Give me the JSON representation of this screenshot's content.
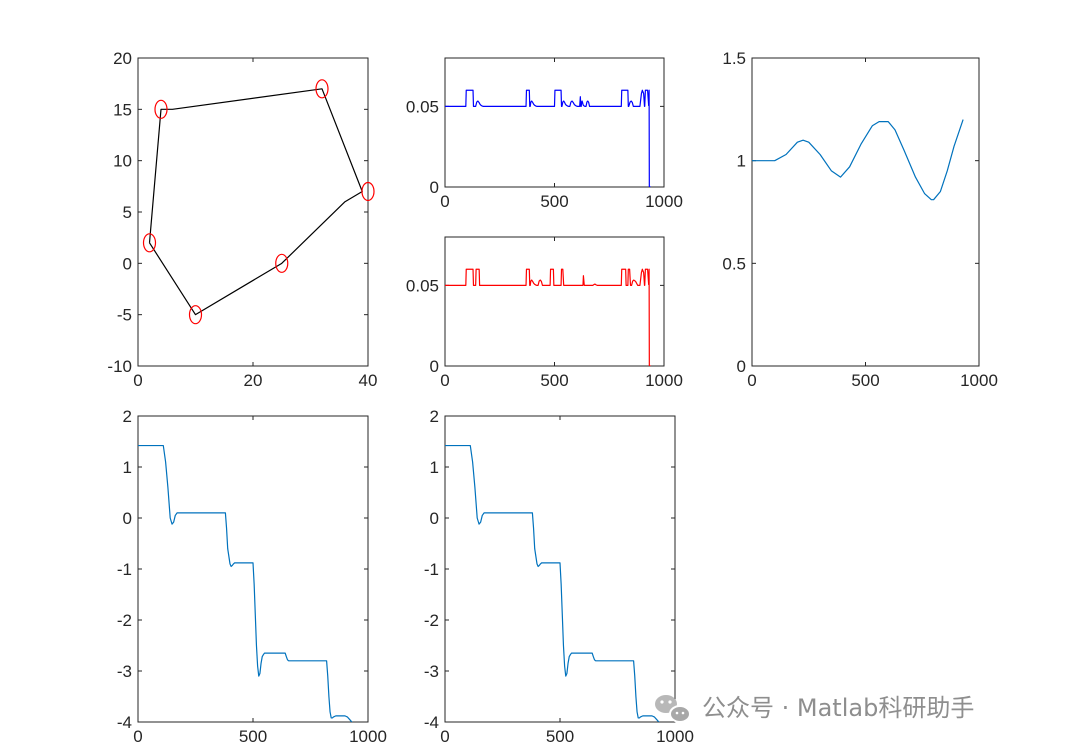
{
  "watermark": {
    "text": "公众号 · Matlab科研助手",
    "icon": "wechat-icon"
  },
  "chart_data": [
    {
      "type": "line",
      "panel": "top-left",
      "xlim": [
        0,
        40
      ],
      "ylim": [
        -10,
        20
      ],
      "xticks": [
        "0",
        "20",
        "40"
      ],
      "yticks": [
        "-10",
        "-5",
        "0",
        "5",
        "10",
        "15",
        "20"
      ],
      "series": [
        {
          "color": "#000000",
          "x": [
            2,
            4,
            6,
            32,
            39,
            36,
            25,
            10,
            2
          ],
          "y": [
            2,
            15,
            15,
            17,
            7,
            6,
            0,
            -5,
            2
          ]
        },
        {
          "type": "scatter",
          "marker": "circle",
          "color": "#ff0000",
          "x": [
            2,
            4,
            10,
            25,
            32,
            40
          ],
          "y": [
            2,
            15,
            -5,
            0,
            17,
            7
          ]
        }
      ]
    },
    {
      "type": "line",
      "panel": "top-middle-upper",
      "xlim": [
        0,
        1000
      ],
      "ylim": [
        0,
        0.08
      ],
      "xticks": [
        "0",
        "500",
        "1000"
      ],
      "yticks": [
        "0",
        "0.05"
      ],
      "series": [
        {
          "color": "#0000ff",
          "x": [
            0,
            95,
            97,
            99,
            103,
            110,
            118,
            123,
            128,
            130,
            132,
            140,
            145,
            150,
            155,
            160,
            165,
            170,
            175,
            180,
            185,
            370,
            372,
            374,
            385,
            387,
            389,
            392,
            396,
            400,
            405,
            410,
            415,
            420,
            425,
            500,
            502,
            504,
            530,
            532,
            534,
            538,
            542,
            546,
            550,
            555,
            560,
            565,
            570,
            575,
            580,
            585,
            590,
            595,
            600,
            605,
            610,
            615,
            618,
            620,
            622,
            624,
            626,
            628,
            630,
            632,
            636,
            640,
            644,
            648,
            652,
            656,
            660,
            805,
            807,
            809,
            835,
            837,
            839,
            845,
            850,
            855,
            860,
            880,
            890,
            897,
            901,
            907,
            911,
            912,
            915,
            918,
            925,
            930,
            932,
            933,
            940
          ],
          "y": [
            0.05,
            0.05,
            0.06,
            0.06,
            0.06,
            0.06,
            0.06,
            0.06,
            0.06,
            0.05,
            0.05,
            0.05,
            0.0527,
            0.0533,
            0.0525,
            0.0513,
            0.0506,
            0.0502,
            0.05,
            0.05,
            0.05,
            0.05,
            0.06,
            0.06,
            0.06,
            0.05,
            0.05,
            0.0527,
            0.0533,
            0.0525,
            0.0513,
            0.0506,
            0.0502,
            0.05,
            0.05,
            0.05,
            0.06,
            0.06,
            0.06,
            0.05,
            0.05,
            0.0527,
            0.0533,
            0.0525,
            0.0513,
            0.0506,
            0.0502,
            0.05,
            0.05,
            0.0527,
            0.0533,
            0.0525,
            0.0513,
            0.0506,
            0.0502,
            0.05,
            0.05,
            0.05,
            0.056,
            0.05,
            0.05,
            0.0527,
            0.0533,
            0.0525,
            0.0513,
            0.0506,
            0.0502,
            0.05,
            0.05,
            0.0527,
            0.0533,
            0.0525,
            0.05,
            0.05,
            0.06,
            0.06,
            0.06,
            0.05,
            0.05,
            0.0527,
            0.0533,
            0.0525,
            0.05,
            0.05,
            0.05,
            0.058,
            0.06,
            0.058,
            0.05,
            0.05,
            0.06,
            0.06,
            0.06,
            0.0505,
            0.06,
            0.0,
            0.0
          ]
        }
      ]
    },
    {
      "type": "line",
      "panel": "top-middle-lower",
      "xlim": [
        0,
        1000
      ],
      "ylim": [
        0,
        0.08
      ],
      "xticks": [
        "0",
        "500",
        "1000"
      ],
      "yticks": [
        "0",
        "0.05"
      ],
      "series": [
        {
          "color": "#ff0000",
          "x": [
            0,
            95,
            97,
            99,
            103,
            110,
            118,
            123,
            128,
            130,
            132,
            140,
            142,
            144,
            148,
            152,
            156,
            158,
            160,
            165,
            370,
            372,
            374,
            385,
            387,
            389,
            392,
            396,
            400,
            405,
            410,
            415,
            420,
            425,
            430,
            435,
            440,
            445,
            480,
            482,
            484,
            495,
            497,
            499,
            530,
            532,
            534,
            538,
            542,
            546,
            550,
            555,
            560,
            565,
            630,
            632,
            636,
            640,
            644,
            648,
            652,
            656,
            660,
            675,
            680,
            685,
            690,
            695,
            805,
            807,
            809,
            825,
            827,
            829,
            835,
            837,
            839,
            843,
            847,
            852,
            857,
            862,
            870,
            880,
            890,
            897,
            901,
            907,
            911,
            912,
            915,
            918,
            925,
            930,
            932,
            933,
            940
          ],
          "y": [
            0.05,
            0.05,
            0.06,
            0.06,
            0.06,
            0.06,
            0.06,
            0.06,
            0.06,
            0.05,
            0.05,
            0.05,
            0.06,
            0.06,
            0.06,
            0.06,
            0.06,
            0.05,
            0.05,
            0.05,
            0.05,
            0.06,
            0.06,
            0.06,
            0.05,
            0.05,
            0.0527,
            0.0533,
            0.0525,
            0.0513,
            0.0506,
            0.0502,
            0.05,
            0.05,
            0.0527,
            0.0533,
            0.0525,
            0.05,
            0.05,
            0.06,
            0.06,
            0.06,
            0.05,
            0.05,
            0.05,
            0.06,
            0.06,
            0.06,
            0.05,
            0.05,
            0.05,
            0.05,
            0.05,
            0.05,
            0.05,
            0.056,
            0.05,
            0.05,
            0.05,
            0.05,
            0.05,
            0.05,
            0.05,
            0.05,
            0.0505,
            0.0508,
            0.0503,
            0.05,
            0.05,
            0.06,
            0.06,
            0.06,
            0.05,
            0.05,
            0.05,
            0.06,
            0.06,
            0.06,
            0.05,
            0.05,
            0.0527,
            0.0533,
            0.0525,
            0.05,
            0.05,
            0.058,
            0.06,
            0.058,
            0.05,
            0.05,
            0.06,
            0.06,
            0.06,
            0.0505,
            0.06,
            0.0,
            0.0
          ]
        }
      ]
    },
    {
      "type": "line",
      "panel": "top-right",
      "xlim": [
        0,
        1000
      ],
      "ylim": [
        0,
        1.5
      ],
      "xticks": [
        "0",
        "500",
        "1000"
      ],
      "yticks": [
        "0",
        "0.5",
        "1",
        "1.5"
      ],
      "series": [
        {
          "color": "#0072bd",
          "x": [
            0,
            100,
            150,
            200,
            225,
            250,
            300,
            350,
            390,
            430,
            480,
            530,
            560,
            590,
            600,
            630,
            670,
            720,
            760,
            790,
            800,
            830,
            860,
            890,
            930
          ],
          "y": [
            1.0,
            1.0,
            1.03,
            1.09,
            1.1,
            1.09,
            1.03,
            0.95,
            0.92,
            0.97,
            1.08,
            1.17,
            1.19,
            1.19,
            1.19,
            1.15,
            1.05,
            0.92,
            0.84,
            0.81,
            0.81,
            0.85,
            0.95,
            1.07,
            1.2
          ]
        }
      ]
    },
    {
      "type": "line",
      "panel": "bottom-left",
      "xlim": [
        0,
        1000
      ],
      "ylim": [
        -4,
        2
      ],
      "xticks": [
        "0",
        "500",
        "1000"
      ],
      "yticks": [
        "-4",
        "-3",
        "-2",
        "-1",
        "0",
        "1",
        "2"
      ],
      "series": [
        {
          "color": "#0072bd",
          "x": [
            0,
            110,
            120,
            130,
            140,
            148,
            155,
            162,
            170,
            180,
            380,
            385,
            390,
            400,
            405,
            410,
            415,
            420,
            425,
            430,
            450,
            500,
            505,
            510,
            515,
            520,
            525,
            530,
            535,
            540,
            545,
            550,
            560,
            580,
            640,
            645,
            650,
            655,
            660,
            820,
            825,
            830,
            835,
            840,
            845,
            850,
            860,
            900,
            910,
            920,
            930
          ],
          "y": [
            1.42,
            1.42,
            1.1,
            0.6,
            0.0,
            -0.12,
            -0.08,
            0.05,
            0.1,
            0.1,
            0.1,
            -0.2,
            -0.6,
            -0.9,
            -0.95,
            -0.93,
            -0.9,
            -0.88,
            -0.88,
            -0.88,
            -0.88,
            -0.88,
            -1.3,
            -1.9,
            -2.5,
            -2.9,
            -3.1,
            -3.05,
            -2.85,
            -2.72,
            -2.68,
            -2.65,
            -2.65,
            -2.65,
            -2.65,
            -2.72,
            -2.78,
            -2.8,
            -2.8,
            -2.8,
            -3.1,
            -3.5,
            -3.8,
            -3.92,
            -3.92,
            -3.9,
            -3.88,
            -3.88,
            -3.9,
            -3.95,
            -4.0
          ]
        }
      ]
    },
    {
      "type": "line",
      "panel": "bottom-middle",
      "xlim": [
        0,
        1000
      ],
      "ylim": [
        -4,
        2
      ],
      "xticks": [
        "0",
        "500",
        "1000"
      ],
      "yticks": [
        "-4",
        "-3",
        "-2",
        "-1",
        "0",
        "1",
        "2"
      ],
      "series": [
        {
          "color": "#0072bd",
          "x": [
            0,
            110,
            120,
            130,
            140,
            148,
            155,
            162,
            170,
            180,
            380,
            385,
            390,
            400,
            405,
            410,
            415,
            420,
            425,
            430,
            450,
            500,
            505,
            510,
            515,
            520,
            525,
            530,
            535,
            540,
            545,
            550,
            560,
            580,
            640,
            645,
            650,
            655,
            660,
            820,
            825,
            830,
            835,
            840,
            845,
            850,
            860,
            900,
            910,
            920,
            930
          ],
          "y": [
            1.42,
            1.42,
            1.1,
            0.6,
            0.0,
            -0.12,
            -0.08,
            0.05,
            0.1,
            0.1,
            0.1,
            -0.2,
            -0.6,
            -0.9,
            -0.95,
            -0.93,
            -0.9,
            -0.88,
            -0.88,
            -0.88,
            -0.88,
            -0.88,
            -1.3,
            -1.9,
            -2.5,
            -2.9,
            -3.1,
            -3.05,
            -2.85,
            -2.72,
            -2.68,
            -2.65,
            -2.65,
            -2.65,
            -2.65,
            -2.72,
            -2.78,
            -2.8,
            -2.8,
            -2.8,
            -3.1,
            -3.5,
            -3.8,
            -3.92,
            -3.92,
            -3.9,
            -3.88,
            -3.88,
            -3.9,
            -3.95,
            -4.0
          ]
        }
      ]
    }
  ]
}
